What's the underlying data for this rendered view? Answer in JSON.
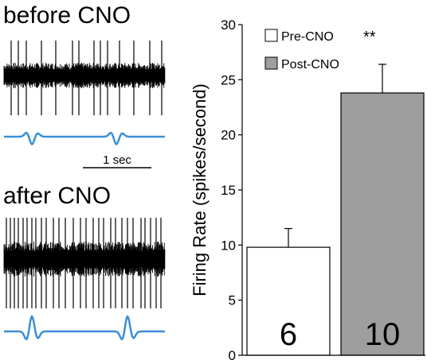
{
  "panels": {
    "before_label": "before CNO",
    "after_label": "after CNO",
    "scale_bar_label": "1 sec",
    "trace_color": "#000000",
    "waveform_color": "#3b8fd6"
  },
  "chart_data": {
    "type": "bar",
    "title": "",
    "xlabel": "",
    "ylabel": "Firing Rate (spikes/second)",
    "ylim": [
      0,
      30
    ],
    "yticks": [
      0,
      5,
      10,
      15,
      20,
      25,
      30
    ],
    "grid": false,
    "legend_position": "top",
    "categories": [
      "Pre-CNO",
      "Post-CNO"
    ],
    "values": [
      9.8,
      23.8
    ],
    "errors": [
      1.7,
      2.6
    ],
    "counts": [
      "6",
      "10"
    ],
    "colors": [
      "#ffffff",
      "#9e9e9e"
    ],
    "significance": "**"
  }
}
